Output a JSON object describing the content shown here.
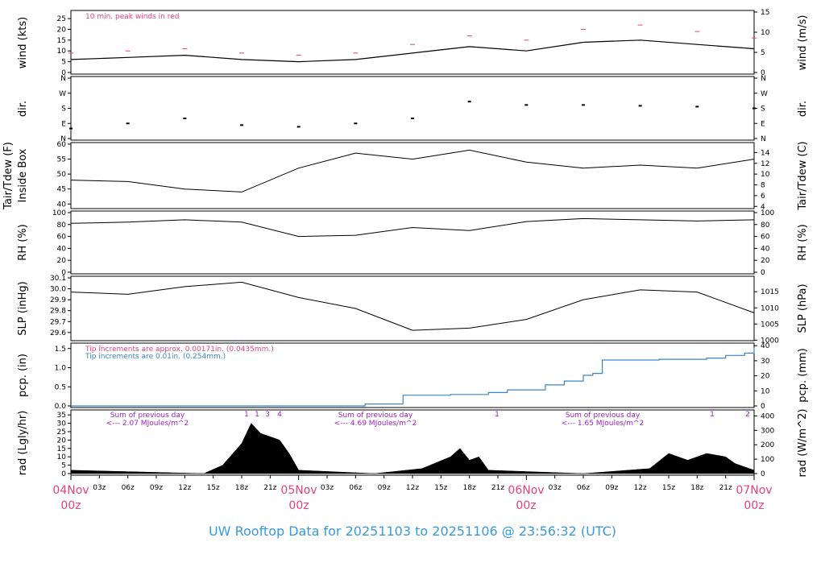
{
  "title": "UW Rooftop Data for 20251103  to  20251106 @ 23:56:32  (UTC)",
  "colors": {
    "pink": "#e8427a",
    "blue": "#3a86c8",
    "purple": "#9d22c9",
    "title_blue": "#3a9ad9"
  },
  "time_axis": {
    "minor_ticks": [
      "03z",
      "06z",
      "09z",
      "12z",
      "15z",
      "18z",
      "21z"
    ],
    "day_labels": [
      {
        "day": "04Nov",
        "hour": "00z"
      },
      {
        "day": "05Nov",
        "hour": "00z"
      },
      {
        "day": "06Nov",
        "hour": "00z"
      },
      {
        "day": "07Nov",
        "hour": "00z"
      }
    ]
  },
  "chart_data": [
    {
      "type": "line",
      "panel": "wind",
      "ylabel_left": "wind (kts)",
      "ylabel_right": "wind (m/s)",
      "ylim": [
        0,
        28
      ],
      "left_ticks": [
        "0",
        "5",
        "10",
        "15",
        "20",
        "25"
      ],
      "right_ticks": [
        "0",
        "5",
        "10",
        "15"
      ],
      "annotation": "10 min. peak winds in red",
      "x_hours": [
        0,
        6,
        12,
        18,
        24,
        30,
        36,
        42,
        48,
        54,
        60,
        66,
        72
      ],
      "series": [
        {
          "values": [
            6,
            7,
            8,
            6,
            5,
            6,
            9,
            12,
            10,
            14,
            15,
            13,
            11
          ]
        },
        {
          "values": [
            9,
            10,
            11,
            9,
            8,
            9,
            13,
            17,
            15,
            20,
            22,
            19,
            16
          ]
        }
      ]
    },
    {
      "type": "scatter",
      "panel": "dir",
      "ylabel_left": "dir.",
      "ylabel_right": "dir.",
      "ticks": [
        "N",
        "E",
        "S",
        "W",
        "N"
      ],
      "x_hours": [
        0,
        6,
        12,
        18,
        24,
        30,
        36,
        42,
        48,
        54,
        60,
        66,
        72
      ],
      "values": [
        60,
        90,
        120,
        80,
        70,
        90,
        120,
        220,
        200,
        200,
        195,
        190,
        180
      ]
    },
    {
      "type": "line",
      "panel": "temp",
      "ylabel_left_line1": "Tair/Tdew (F)",
      "ylabel_left_line2": "Inside Box",
      "ylabel_right": "Tair/Tdew (C)",
      "ylim": [
        39,
        60
      ],
      "left_ticks": [
        "40",
        "45",
        "50",
        "55",
        "60"
      ],
      "right_ticks": [
        "4",
        "6",
        "8",
        "10",
        "12",
        "14"
      ],
      "x_hours": [
        0,
        6,
        12,
        18,
        24,
        30,
        36,
        42,
        48,
        54,
        60,
        66,
        72
      ],
      "values": [
        48,
        47.5,
        45,
        44,
        52,
        57,
        55,
        58,
        54,
        52,
        53,
        52,
        55
      ]
    },
    {
      "type": "line",
      "panel": "rh",
      "ylabel_left": "RH (%)",
      "ylabel_right": "RH (%)",
      "ylim": [
        0,
        100
      ],
      "ticks": [
        "0",
        "20",
        "40",
        "60",
        "80",
        "100"
      ],
      "x_hours": [
        0,
        6,
        12,
        18,
        24,
        30,
        36,
        42,
        48,
        54,
        60,
        66,
        72
      ],
      "values": [
        82,
        84,
        88,
        84,
        60,
        62,
        75,
        70,
        85,
        90,
        88,
        86,
        88
      ]
    },
    {
      "type": "line",
      "panel": "slp",
      "ylabel_left": "SLP (inHg)",
      "ylabel_right": "SLP (hPa)",
      "ylim": [
        29.54,
        30.1
      ],
      "left_ticks": [
        "29.6",
        "29.7",
        "29.8",
        "29.9",
        "30.0",
        "30.1"
      ],
      "right_ticks": [
        "1000",
        "1005",
        "1010",
        "1015"
      ],
      "x_hours": [
        0,
        6,
        12,
        18,
        24,
        30,
        36,
        42,
        48,
        54,
        60,
        66,
        72
      ],
      "values": [
        29.97,
        29.95,
        30.02,
        30.06,
        29.92,
        29.82,
        29.62,
        29.64,
        29.72,
        29.9,
        29.99,
        29.97,
        29.78
      ]
    },
    {
      "type": "line",
      "panel": "pcp",
      "ylabel_left": "pcp. (in)",
      "ylabel_right": "pcp. (mm)",
      "ylim": [
        0,
        1.6
      ],
      "left_ticks": [
        "0.0",
        "0.5",
        "1.0",
        "1.5"
      ],
      "right_ticks": [
        "0",
        "10",
        "20",
        "30",
        "40"
      ],
      "annotation_pink": "Tip increments are approx. 0.00171in. (0.0435mm.)",
      "annotation_blue": "Tip increments are 0.01in. (0.254mm.)",
      "x_hours": [
        0,
        24,
        31,
        35,
        40,
        44,
        46,
        50,
        52,
        54,
        55,
        56,
        62,
        67,
        69,
        71,
        72
      ],
      "values": [
        0,
        0,
        0.05,
        0.28,
        0.3,
        0.35,
        0.42,
        0.55,
        0.65,
        0.8,
        0.85,
        1.2,
        1.22,
        1.25,
        1.32,
        1.38,
        1.52
      ]
    },
    {
      "type": "area",
      "panel": "rad",
      "ylabel_left": "rad (Lgly/hr)",
      "ylabel_right": "rad (W/m^2)",
      "ylim": [
        0,
        37
      ],
      "left_ticks": [
        "0",
        "5",
        "10",
        "15",
        "20",
        "25",
        "30",
        "35"
      ],
      "right_ticks": [
        "0",
        "100",
        "200",
        "300",
        "400"
      ],
      "sums": [
        {
          "line1": "Sum of previous day",
          "line2": "<--- 2.07 MJoules/m^2"
        },
        {
          "line1": "Sum of previous day",
          "line2": "<--- 4.69 MJoules/m^2"
        },
        {
          "line1": "Sum of previous day",
          "line2": "<--- 1.65 MJoules/m^2"
        }
      ],
      "markers": [
        "1",
        "1",
        "3",
        "4",
        "1",
        "1",
        "2"
      ],
      "x_hours": [
        0,
        14,
        16,
        18,
        19,
        20,
        21,
        22,
        23,
        24,
        32,
        37,
        40,
        41,
        42,
        43,
        44,
        54,
        61,
        63,
        65,
        67,
        69,
        70,
        71,
        72
      ],
      "values": [
        2,
        0,
        5,
        18,
        30,
        24,
        22,
        20,
        12,
        2,
        0,
        3,
        10,
        15,
        8,
        10,
        2,
        0,
        3,
        12,
        8,
        12,
        10,
        6,
        4,
        2
      ]
    }
  ]
}
